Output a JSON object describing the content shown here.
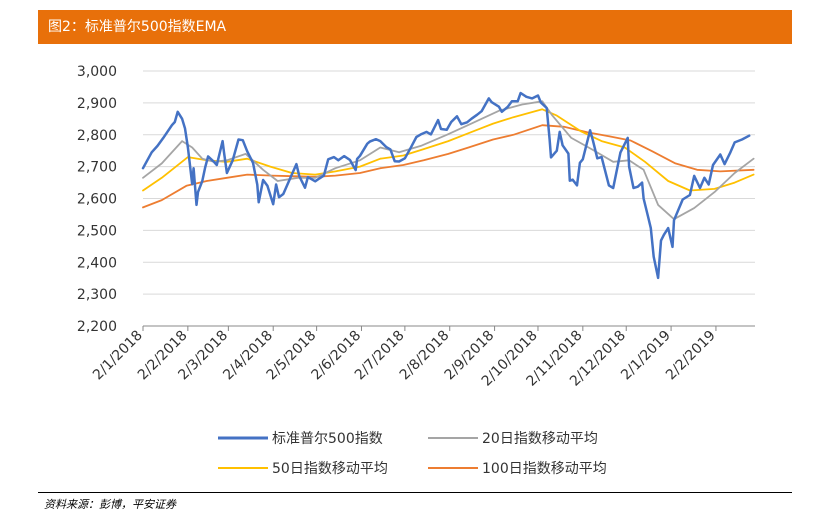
{
  "header": {
    "title": "图2：标准普尔500指数EMA"
  },
  "footer": {
    "source": "资料来源：彭博，平安证券"
  },
  "colors": {
    "header_bg": "#E8700A",
    "sp500": "#4472C4",
    "ema20": "#A5A5A5",
    "ema50": "#FFC000",
    "ema100": "#ED7D31"
  },
  "chart_data": {
    "type": "line",
    "title": "",
    "xlabel": "",
    "ylabel": "",
    "ylim": [
      2200,
      3000
    ],
    "yticks": [
      2200,
      2300,
      2400,
      2500,
      2600,
      2700,
      2800,
      2900,
      3000
    ],
    "ytick_labels": [
      "2,200",
      "2,300",
      "2,400",
      "2,500",
      "2,600",
      "2,700",
      "2,800",
      "2,900",
      "3,000"
    ],
    "xlim": [
      "2018-01-02",
      "2019-03-01"
    ],
    "xtick_labels": [
      "2/1/2018",
      "2/2/2018",
      "2/3/2018",
      "2/4/2018",
      "2/5/2018",
      "2/6/2018",
      "2/7/2018",
      "2/8/2018",
      "2/9/2018",
      "2/10/2018",
      "2/11/2018",
      "2/12/2018",
      "2/1/2019",
      "2/2/2019"
    ],
    "xtick_dates": [
      "2018-01-02",
      "2018-02-02",
      "2018-03-02",
      "2018-04-02",
      "2018-05-02",
      "2018-06-02",
      "2018-07-02",
      "2018-08-02",
      "2018-09-02",
      "2018-10-02",
      "2018-11-02",
      "2018-12-02",
      "2019-01-02",
      "2019-02-02"
    ],
    "grid": "horizontal",
    "legend_position": "bottom",
    "series": [
      {
        "name": "标准普尔500指数",
        "color": "#4472C4",
        "points": [
          [
            "2018-01-02",
            2695
          ],
          [
            "2018-01-08",
            2745
          ],
          [
            "2018-01-12",
            2765
          ],
          [
            "2018-01-16",
            2790
          ],
          [
            "2018-01-19",
            2810
          ],
          [
            "2018-01-22",
            2830
          ],
          [
            "2018-01-24",
            2840
          ],
          [
            "2018-01-26",
            2872
          ],
          [
            "2018-01-29",
            2850
          ],
          [
            "2018-01-31",
            2820
          ],
          [
            "2018-02-02",
            2760
          ],
          [
            "2018-02-05",
            2645
          ],
          [
            "2018-02-06",
            2695
          ],
          [
            "2018-02-08",
            2580
          ],
          [
            "2018-02-09",
            2620
          ],
          [
            "2018-02-12",
            2655
          ],
          [
            "2018-02-14",
            2698
          ],
          [
            "2018-02-16",
            2732
          ],
          [
            "2018-02-20",
            2715
          ],
          [
            "2018-02-22",
            2705
          ],
          [
            "2018-02-26",
            2780
          ],
          [
            "2018-02-27",
            2745
          ],
          [
            "2018-03-01",
            2680
          ],
          [
            "2018-03-05",
            2720
          ],
          [
            "2018-03-09",
            2785
          ],
          [
            "2018-03-12",
            2783
          ],
          [
            "2018-03-15",
            2748
          ],
          [
            "2018-03-19",
            2712
          ],
          [
            "2018-03-22",
            2643
          ],
          [
            "2018-03-23",
            2588
          ],
          [
            "2018-03-26",
            2658
          ],
          [
            "2018-03-29",
            2640
          ],
          [
            "2018-04-02",
            2582
          ],
          [
            "2018-04-04",
            2644
          ],
          [
            "2018-04-06",
            2604
          ],
          [
            "2018-04-09",
            2614
          ],
          [
            "2018-04-13",
            2656
          ],
          [
            "2018-04-18",
            2708
          ],
          [
            "2018-04-20",
            2670
          ],
          [
            "2018-04-24",
            2634
          ],
          [
            "2018-04-26",
            2667
          ],
          [
            "2018-05-01",
            2654
          ],
          [
            "2018-05-04",
            2663
          ],
          [
            "2018-05-07",
            2672
          ],
          [
            "2018-05-10",
            2723
          ],
          [
            "2018-05-14",
            2730
          ],
          [
            "2018-05-17",
            2720
          ],
          [
            "2018-05-21",
            2733
          ],
          [
            "2018-05-25",
            2721
          ],
          [
            "2018-05-29",
            2689
          ],
          [
            "2018-05-30",
            2724
          ],
          [
            "2018-06-01",
            2734
          ],
          [
            "2018-06-06",
            2772
          ],
          [
            "2018-06-08",
            2779
          ],
          [
            "2018-06-12",
            2786
          ],
          [
            "2018-06-15",
            2780
          ],
          [
            "2018-06-19",
            2762
          ],
          [
            "2018-06-22",
            2754
          ],
          [
            "2018-06-25",
            2717
          ],
          [
            "2018-06-28",
            2716
          ],
          [
            "2018-07-02",
            2726
          ],
          [
            "2018-07-06",
            2759
          ],
          [
            "2018-07-10",
            2793
          ],
          [
            "2018-07-13",
            2801
          ],
          [
            "2018-07-17",
            2809
          ],
          [
            "2018-07-20",
            2801
          ],
          [
            "2018-07-25",
            2846
          ],
          [
            "2018-07-27",
            2818
          ],
          [
            "2018-07-31",
            2816
          ],
          [
            "2018-08-03",
            2840
          ],
          [
            "2018-08-07",
            2858
          ],
          [
            "2018-08-10",
            2833
          ],
          [
            "2018-08-14",
            2839
          ],
          [
            "2018-08-17",
            2850
          ],
          [
            "2018-08-21",
            2863
          ],
          [
            "2018-08-24",
            2874
          ],
          [
            "2018-08-29",
            2914
          ],
          [
            "2018-08-31",
            2902
          ],
          [
            "2018-09-05",
            2888
          ],
          [
            "2018-09-07",
            2872
          ],
          [
            "2018-09-11",
            2887
          ],
          [
            "2018-09-14",
            2905
          ],
          [
            "2018-09-18",
            2905
          ],
          [
            "2018-09-20",
            2931
          ],
          [
            "2018-09-24",
            2919
          ],
          [
            "2018-09-28",
            2914
          ],
          [
            "2018-10-02",
            2923
          ],
          [
            "2018-10-04",
            2901
          ],
          [
            "2018-10-08",
            2884
          ],
          [
            "2018-10-10",
            2786
          ],
          [
            "2018-10-11",
            2729
          ],
          [
            "2018-10-15",
            2750
          ],
          [
            "2018-10-17",
            2809
          ],
          [
            "2018-10-19",
            2767
          ],
          [
            "2018-10-23",
            2741
          ],
          [
            "2018-10-24",
            2656
          ],
          [
            "2018-10-26",
            2659
          ],
          [
            "2018-10-29",
            2641
          ],
          [
            "2018-10-31",
            2712
          ],
          [
            "2018-11-02",
            2723
          ],
          [
            "2018-11-07",
            2814
          ],
          [
            "2018-11-09",
            2781
          ],
          [
            "2018-11-12",
            2726
          ],
          [
            "2018-11-15",
            2730
          ],
          [
            "2018-11-20",
            2641
          ],
          [
            "2018-11-23",
            2633
          ],
          [
            "2018-11-28",
            2744
          ],
          [
            "2018-12-03",
            2790
          ],
          [
            "2018-12-04",
            2700
          ],
          [
            "2018-12-07",
            2633
          ],
          [
            "2018-12-10",
            2637
          ],
          [
            "2018-12-13",
            2650
          ],
          [
            "2018-12-14",
            2600
          ],
          [
            "2018-12-17",
            2545
          ],
          [
            "2018-12-19",
            2507
          ],
          [
            "2018-12-21",
            2417
          ],
          [
            "2018-12-24",
            2351
          ],
          [
            "2018-12-26",
            2468
          ],
          [
            "2018-12-28",
            2486
          ],
          [
            "2018-12-31",
            2507
          ],
          [
            "2019-01-03",
            2448
          ],
          [
            "2019-01-04",
            2532
          ],
          [
            "2019-01-10",
            2597
          ],
          [
            "2019-01-15",
            2611
          ],
          [
            "2019-01-18",
            2671
          ],
          [
            "2019-01-22",
            2633
          ],
          [
            "2019-01-25",
            2665
          ],
          [
            "2019-01-28",
            2644
          ],
          [
            "2019-01-31",
            2705
          ],
          [
            "2019-02-05",
            2738
          ],
          [
            "2019-02-08",
            2708
          ],
          [
            "2019-02-12",
            2745
          ],
          [
            "2019-02-15",
            2776
          ],
          [
            "2019-02-20",
            2785
          ],
          [
            "2019-02-25",
            2797
          ]
        ]
      },
      {
        "name": "20日指数移动平均",
        "color": "#A5A5A5",
        "points": [
          [
            "2018-01-02",
            2665
          ],
          [
            "2018-01-15",
            2710
          ],
          [
            "2018-01-29",
            2780
          ],
          [
            "2018-02-05",
            2760
          ],
          [
            "2018-02-12",
            2725
          ],
          [
            "2018-02-20",
            2715
          ],
          [
            "2018-03-01",
            2720
          ],
          [
            "2018-03-14",
            2740
          ],
          [
            "2018-03-26",
            2690
          ],
          [
            "2018-04-05",
            2655
          ],
          [
            "2018-04-19",
            2665
          ],
          [
            "2018-05-01",
            2665
          ],
          [
            "2018-05-15",
            2695
          ],
          [
            "2018-06-01",
            2720
          ],
          [
            "2018-06-15",
            2760
          ],
          [
            "2018-06-28",
            2745
          ],
          [
            "2018-07-13",
            2765
          ],
          [
            "2018-07-31",
            2800
          ],
          [
            "2018-08-17",
            2835
          ],
          [
            "2018-09-05",
            2875
          ],
          [
            "2018-09-21",
            2895
          ],
          [
            "2018-10-05",
            2905
          ],
          [
            "2018-10-12",
            2860
          ],
          [
            "2018-10-25",
            2790
          ],
          [
            "2018-11-08",
            2755
          ],
          [
            "2018-11-23",
            2715
          ],
          [
            "2018-12-04",
            2720
          ],
          [
            "2018-12-14",
            2690
          ],
          [
            "2018-12-24",
            2580
          ],
          [
            "2019-01-04",
            2535
          ],
          [
            "2019-01-18",
            2570
          ],
          [
            "2019-02-01",
            2620
          ],
          [
            "2019-02-15",
            2680
          ],
          [
            "2019-02-28",
            2725
          ]
        ]
      },
      {
        "name": "50日指数移动平均",
        "color": "#FFC000",
        "points": [
          [
            "2018-01-02",
            2625
          ],
          [
            "2018-01-15",
            2665
          ],
          [
            "2018-02-02",
            2730
          ],
          [
            "2018-02-15",
            2720
          ],
          [
            "2018-03-01",
            2715
          ],
          [
            "2018-03-15",
            2725
          ],
          [
            "2018-03-31",
            2700
          ],
          [
            "2018-04-15",
            2680
          ],
          [
            "2018-05-01",
            2675
          ],
          [
            "2018-05-15",
            2685
          ],
          [
            "2018-06-01",
            2700
          ],
          [
            "2018-06-15",
            2725
          ],
          [
            "2018-07-01",
            2735
          ],
          [
            "2018-07-15",
            2755
          ],
          [
            "2018-08-01",
            2780
          ],
          [
            "2018-08-15",
            2805
          ],
          [
            "2018-09-01",
            2835
          ],
          [
            "2018-09-15",
            2855
          ],
          [
            "2018-10-05",
            2880
          ],
          [
            "2018-10-15",
            2860
          ],
          [
            "2018-11-01",
            2810
          ],
          [
            "2018-11-15",
            2780
          ],
          [
            "2018-12-01",
            2760
          ],
          [
            "2018-12-15",
            2715
          ],
          [
            "2018-12-31",
            2655
          ],
          [
            "2019-01-15",
            2625
          ],
          [
            "2019-02-01",
            2630
          ],
          [
            "2019-02-15",
            2650
          ],
          [
            "2019-02-28",
            2675
          ]
        ]
      },
      {
        "name": "100日指数移动平均",
        "color": "#ED7D31",
        "points": [
          [
            "2018-01-02",
            2572
          ],
          [
            "2018-01-15",
            2595
          ],
          [
            "2018-02-01",
            2640
          ],
          [
            "2018-02-15",
            2655
          ],
          [
            "2018-03-01",
            2665
          ],
          [
            "2018-03-15",
            2675
          ],
          [
            "2018-04-01",
            2672
          ],
          [
            "2018-04-15",
            2670
          ],
          [
            "2018-05-01",
            2668
          ],
          [
            "2018-05-15",
            2672
          ],
          [
            "2018-06-01",
            2680
          ],
          [
            "2018-06-15",
            2695
          ],
          [
            "2018-07-01",
            2705
          ],
          [
            "2018-07-15",
            2720
          ],
          [
            "2018-08-01",
            2740
          ],
          [
            "2018-08-15",
            2760
          ],
          [
            "2018-09-01",
            2785
          ],
          [
            "2018-09-15",
            2800
          ],
          [
            "2018-10-05",
            2830
          ],
          [
            "2018-10-20",
            2825
          ],
          [
            "2018-11-05",
            2808
          ],
          [
            "2018-11-20",
            2795
          ],
          [
            "2018-12-05",
            2782
          ],
          [
            "2018-12-20",
            2748
          ],
          [
            "2019-01-05",
            2710
          ],
          [
            "2019-01-20",
            2690
          ],
          [
            "2019-02-05",
            2685
          ],
          [
            "2019-02-28",
            2690
          ]
        ]
      }
    ]
  }
}
